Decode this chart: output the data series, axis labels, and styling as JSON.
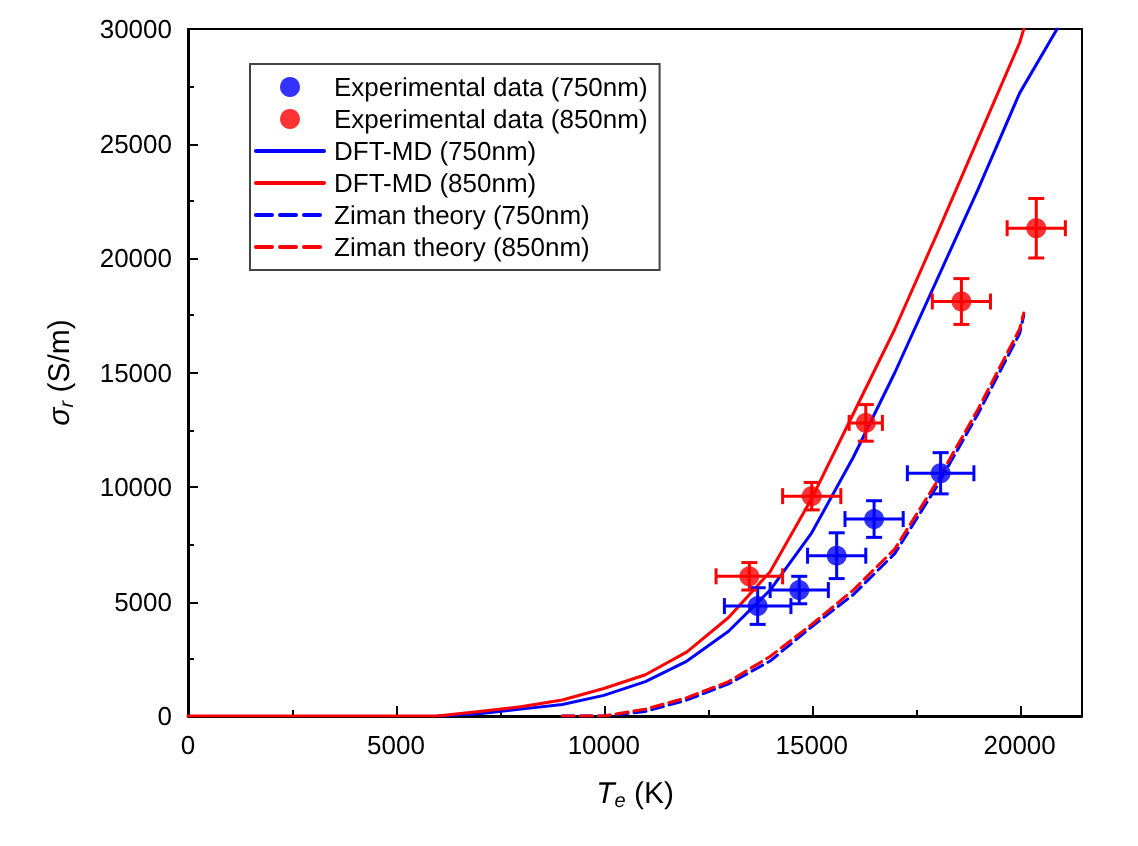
{
  "chart_data": {
    "type": "scatter",
    "xlabel": "T$_{e}$ (K)",
    "ylabel": "σ$_{r}$ (S/m)",
    "xlim": [
      0,
      21500
    ],
    "xticks": [
      0,
      5000,
      10000,
      15000,
      20000
    ],
    "ylim": [
      0,
      30000
    ],
    "yticks": [
      0,
      5000,
      10000,
      15000,
      20000,
      25000,
      30000
    ],
    "grid": false,
    "legend": "top left",
    "marker": "circle",
    "series": [
      {
        "name": "Experimental data (750nm)",
        "color": "#0000ff",
        "x": [
          13700,
          14700,
          15600,
          16500,
          18100
        ],
        "values": [
          4800,
          5500,
          7000,
          8600,
          10600
        ],
        "errors": [
          800,
          600,
          1000,
          800,
          900
        ],
        "xerrors": [
          800,
          700,
          700,
          700,
          800
        ]
      },
      {
        "name": "Experimental data (850nm)",
        "color": "#ff0000",
        "x": [
          13500,
          15000,
          16300,
          18600,
          20400
        ],
        "values": [
          6100,
          9600,
          12800,
          18100,
          21300
        ],
        "errors": [
          600,
          600,
          800,
          1000,
          1300
        ],
        "xerrors": [
          800,
          700,
          400,
          700,
          700
        ]
      },
      {
        "name": "DFT-MD (750nm)",
        "type": "line",
        "marker": "none",
        "line_style": "solid",
        "color": "#0000ff",
        "x": [
          6000,
          7000,
          8000,
          9000,
          10000,
          11000,
          12000,
          13000,
          14000,
          15000,
          16000,
          17000,
          18000,
          19000,
          20000,
          20900
        ],
        "values": [
          0,
          100,
          300,
          500,
          900,
          1500,
          2400,
          3700,
          5500,
          8000,
          11300,
          15000,
          19000,
          23000,
          27200,
          30000
        ]
      },
      {
        "name": "DFT-MD (850nm)",
        "type": "line",
        "marker": "none",
        "line_style": "solid",
        "color": "#ff0000",
        "x": [
          0,
          5000,
          6000,
          7000,
          8000,
          9000,
          10000,
          11000,
          12000,
          13000,
          14000,
          15000,
          16000,
          17000,
          18000,
          19000,
          20000,
          20100
        ],
        "values": [
          0,
          0,
          0,
          200,
          400,
          700,
          1200,
          1800,
          2800,
          4300,
          6300,
          9500,
          13200,
          16900,
          21000,
          25200,
          29400,
          30000
        ]
      },
      {
        "name": "Ziman theory (750nm)",
        "type": "line",
        "marker": "none",
        "line_style": "dashed",
        "color": "#0000ff",
        "x": [
          9000,
          10000,
          11000,
          12000,
          13000,
          14000,
          15000,
          16000,
          17000,
          18000,
          19000,
          20000,
          20100
        ],
        "values": [
          0,
          0,
          200,
          700,
          1400,
          2400,
          3900,
          5300,
          7100,
          10000,
          13200,
          16700,
          17500
        ]
      },
      {
        "name": "Ziman theory (850nm)",
        "type": "line",
        "marker": "none",
        "line_style": "dashed",
        "color": "#ff0000",
        "x": [
          9000,
          10000,
          11000,
          12000,
          13000,
          14000,
          15000,
          16000,
          17000,
          18000,
          19000,
          20000,
          20100
        ],
        "values": [
          0,
          0,
          300,
          800,
          1500,
          2600,
          4000,
          5500,
          7300,
          10200,
          13400,
          16900,
          17600
        ]
      }
    ]
  }
}
